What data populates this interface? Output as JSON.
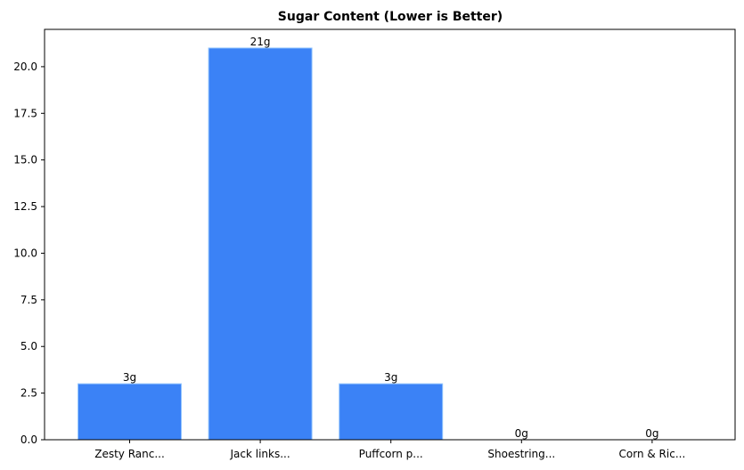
{
  "chart_data": {
    "type": "bar",
    "title": "Sugar Content (Lower is Better)",
    "xlabel": "",
    "ylabel": "",
    "categories": [
      "Zesty Ranc...",
      "Jack links...",
      "Puffcorn p...",
      "Shoestring...",
      "Corn & Ric..."
    ],
    "values": [
      3,
      21,
      3,
      0,
      0
    ],
    "data_labels": [
      "3g",
      "21g",
      "3g",
      "0g",
      "0g"
    ],
    "ylim": [
      0,
      22
    ],
    "yticks": [
      0,
      2.5,
      5,
      7.5,
      10,
      12.5,
      15,
      17.5,
      20
    ],
    "ytick_labels": [
      "0.0",
      "2.5",
      "5.0",
      "7.5",
      "10.0",
      "12.5",
      "15.0",
      "17.5",
      "20.0"
    ],
    "grid": false,
    "bar_color": "#3b82f6",
    "bar_edge_color": "#93c5fd"
  }
}
